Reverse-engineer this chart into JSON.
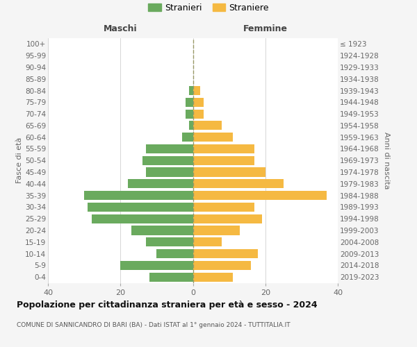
{
  "age_groups": [
    "0-4",
    "5-9",
    "10-14",
    "15-19",
    "20-24",
    "25-29",
    "30-34",
    "35-39",
    "40-44",
    "45-49",
    "50-54",
    "55-59",
    "60-64",
    "65-69",
    "70-74",
    "75-79",
    "80-84",
    "85-89",
    "90-94",
    "95-99",
    "100+"
  ],
  "birth_years": [
    "2019-2023",
    "2014-2018",
    "2009-2013",
    "2004-2008",
    "1999-2003",
    "1994-1998",
    "1989-1993",
    "1984-1988",
    "1979-1983",
    "1974-1978",
    "1969-1973",
    "1964-1968",
    "1959-1963",
    "1954-1958",
    "1949-1953",
    "1944-1948",
    "1939-1943",
    "1934-1938",
    "1929-1933",
    "1924-1928",
    "≤ 1923"
  ],
  "maschi": [
    12,
    20,
    10,
    13,
    17,
    28,
    29,
    30,
    18,
    13,
    14,
    13,
    3,
    1,
    2,
    2,
    1,
    0,
    0,
    0,
    0
  ],
  "femmine": [
    11,
    16,
    18,
    8,
    13,
    19,
    17,
    37,
    25,
    20,
    17,
    17,
    11,
    8,
    3,
    3,
    2,
    0,
    0,
    0,
    0
  ],
  "color_maschi": "#6aaa5e",
  "color_femmine": "#f5b942",
  "background_color": "#f5f5f5",
  "plot_background": "#ffffff",
  "grid_color": "#d0d0d0",
  "title": "Popolazione per cittadinanza straniera per età e sesso - 2024",
  "subtitle": "COMUNE DI SANNICANDRO DI BARI (BA) - Dati ISTAT al 1° gennaio 2024 - TUTTITALIA.IT",
  "xlabel_left": "Maschi",
  "xlabel_right": "Femmine",
  "ylabel_left": "Fasce di età",
  "ylabel_right": "Anni di nascita",
  "legend_maschi": "Stranieri",
  "legend_femmine": "Straniere",
  "xlim": 40
}
